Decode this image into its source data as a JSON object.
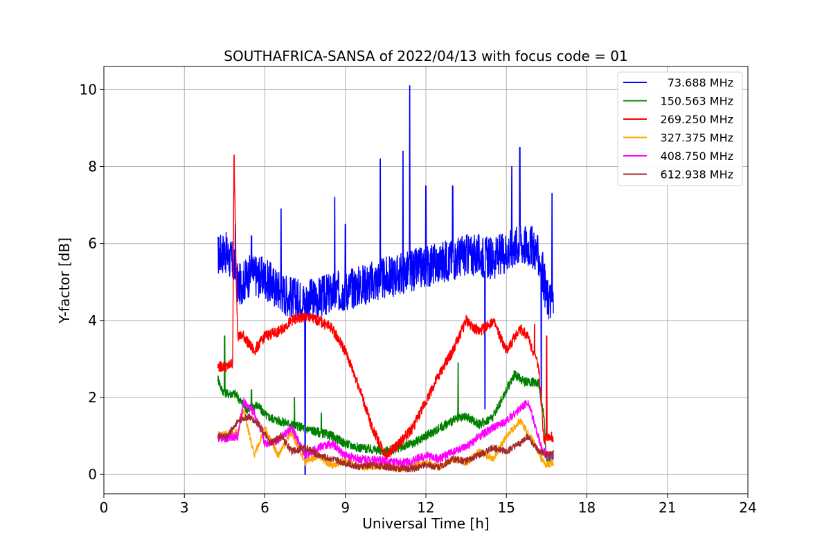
{
  "chart_data": {
    "type": "line",
    "title": "SOUTHAFRICA-SANSA of 2022/04/13 with focus code = 01",
    "xlabel": "Universal Time [h]",
    "ylabel": "Y-factor [dB]",
    "xlim": [
      0,
      24
    ],
    "ylim": [
      -0.5,
      10.6
    ],
    "xticks": [
      0,
      3,
      6,
      9,
      12,
      15,
      18,
      21,
      24
    ],
    "yticks": [
      0,
      2,
      4,
      6,
      8,
      10
    ],
    "grid": true,
    "legend_position": "top-right",
    "series": [
      {
        "name": "73.688 MHz",
        "color": "#0000ff",
        "x": [
          4.25,
          4.5,
          4.8,
          5.0,
          5.5,
          6.0,
          6.5,
          7.0,
          7.5,
          8.0,
          8.5,
          9.0,
          9.5,
          10.0,
          10.5,
          11.0,
          11.5,
          12.0,
          12.5,
          13.0,
          13.5,
          14.0,
          14.5,
          15.0,
          15.5,
          16.0,
          16.3,
          16.5,
          16.75
        ],
        "y": [
          5.7,
          5.8,
          5.5,
          4.9,
          5.2,
          5.1,
          4.8,
          4.6,
          4.5,
          4.6,
          4.7,
          4.8,
          4.9,
          5.0,
          5.1,
          5.2,
          5.3,
          5.4,
          5.5,
          5.6,
          5.7,
          5.7,
          5.6,
          5.8,
          6.0,
          5.9,
          5.5,
          4.6,
          4.5
        ],
        "spikes": [
          [
            4.9,
            6.5
          ],
          [
            5.5,
            6.2
          ],
          [
            6.6,
            6.9
          ],
          [
            7.5,
            0.0
          ],
          [
            8.6,
            7.2
          ],
          [
            9.0,
            6.5
          ],
          [
            10.3,
            8.2
          ],
          [
            11.15,
            8.4
          ],
          [
            11.4,
            10.1
          ],
          [
            12.0,
            7.5
          ],
          [
            13.0,
            7.5
          ],
          [
            14.2,
            1.7
          ],
          [
            15.2,
            8.0
          ],
          [
            15.5,
            8.5
          ],
          [
            16.3,
            1.8
          ],
          [
            16.7,
            7.3
          ]
        ]
      },
      {
        "name": "150.563 MHz",
        "color": "#008000",
        "x": [
          4.25,
          4.4,
          4.6,
          4.9,
          5.3,
          5.7,
          6.1,
          6.5,
          7.0,
          7.5,
          8.0,
          8.5,
          9.0,
          9.5,
          10.0,
          10.5,
          11.0,
          11.5,
          12.0,
          12.5,
          13.0,
          13.5,
          14.0,
          14.5,
          15.0,
          15.3,
          15.7,
          16.2,
          16.4,
          16.5,
          16.75
        ],
        "y": [
          2.5,
          2.2,
          2.1,
          2.1,
          1.7,
          1.8,
          1.5,
          1.4,
          1.3,
          1.2,
          1.1,
          1.0,
          0.8,
          0.7,
          0.65,
          0.6,
          0.7,
          0.8,
          1.0,
          1.2,
          1.4,
          1.5,
          1.3,
          1.5,
          2.2,
          2.6,
          2.4,
          2.4,
          1.5,
          0.3,
          0.5
        ],
        "spikes": [
          [
            4.5,
            3.6
          ],
          [
            5.5,
            2.2
          ],
          [
            7.1,
            2.0
          ],
          [
            8.1,
            1.6
          ],
          [
            13.2,
            2.9
          ]
        ]
      },
      {
        "name": "269.250 MHz",
        "color": "#ff0000",
        "x": [
          4.25,
          4.6,
          4.8,
          4.85,
          4.95,
          5.0,
          5.2,
          5.6,
          6.0,
          6.5,
          7.0,
          7.5,
          8.0,
          8.5,
          9.0,
          9.5,
          10.0,
          10.5,
          11.0,
          11.5,
          12.0,
          12.5,
          13.0,
          13.5,
          14.0,
          14.5,
          15.0,
          15.5,
          15.8,
          16.2,
          16.4,
          16.5,
          16.75
        ],
        "y": [
          2.8,
          2.8,
          2.9,
          8.3,
          4.6,
          3.6,
          3.6,
          3.2,
          3.6,
          3.7,
          4.0,
          4.1,
          4.0,
          3.8,
          3.2,
          2.3,
          1.2,
          0.5,
          0.8,
          1.2,
          1.9,
          2.6,
          3.2,
          4.0,
          3.7,
          4.0,
          3.2,
          3.8,
          3.6,
          2.8,
          0.9,
          1.0,
          0.95
        ],
        "spikes": [
          [
            4.85,
            8.3
          ],
          [
            4.9,
            6.6
          ],
          [
            16.05,
            3.9
          ],
          [
            16.5,
            3.6
          ]
        ]
      },
      {
        "name": "327.375 MHz",
        "color": "#ffa500",
        "x": [
          4.25,
          4.6,
          5.0,
          5.2,
          5.6,
          6.0,
          6.5,
          7.0,
          7.5,
          8.0,
          8.5,
          9.0,
          9.5,
          10.0,
          10.5,
          11.0,
          11.5,
          12.0,
          12.5,
          13.0,
          13.5,
          14.0,
          14.5,
          15.0,
          15.5,
          16.0,
          16.3,
          16.5,
          16.75
        ],
        "y": [
          1.05,
          1.05,
          1.1,
          1.7,
          0.5,
          1.2,
          0.5,
          1.1,
          0.3,
          0.5,
          0.2,
          0.4,
          0.2,
          0.2,
          0.25,
          0.15,
          0.2,
          0.3,
          0.2,
          0.4,
          0.3,
          0.6,
          0.4,
          1.0,
          1.4,
          0.9,
          0.4,
          0.25,
          0.3
        ],
        "spikes": []
      },
      {
        "name": "408.750 MHz",
        "color": "#ff00ff",
        "x": [
          4.25,
          4.6,
          5.0,
          5.2,
          5.6,
          6.0,
          6.5,
          7.0,
          7.5,
          8.0,
          8.5,
          9.0,
          9.5,
          10.0,
          10.5,
          11.0,
          11.5,
          12.0,
          12.5,
          13.0,
          13.5,
          14.0,
          14.5,
          15.0,
          15.5,
          15.8,
          16.1,
          16.3,
          16.5,
          16.75
        ],
        "y": [
          0.95,
          0.95,
          1.0,
          1.9,
          1.6,
          0.8,
          0.9,
          1.2,
          0.5,
          0.7,
          0.8,
          0.5,
          0.4,
          0.4,
          0.35,
          0.3,
          0.35,
          0.5,
          0.4,
          0.6,
          0.7,
          1.0,
          1.2,
          1.4,
          1.7,
          1.9,
          1.2,
          0.7,
          0.5,
          0.5
        ],
        "spikes": []
      },
      {
        "name": "612.938 MHz",
        "color": "#a52a2a",
        "x": [
          4.25,
          4.6,
          5.0,
          5.4,
          5.8,
          6.2,
          6.6,
          7.0,
          7.5,
          8.0,
          8.5,
          9.0,
          9.5,
          10.0,
          10.5,
          11.0,
          11.5,
          12.0,
          12.5,
          13.0,
          13.5,
          14.0,
          14.5,
          15.0,
          15.5,
          15.8,
          16.2,
          16.5,
          16.75
        ],
        "y": [
          1.0,
          1.0,
          1.4,
          1.5,
          1.3,
          0.8,
          1.0,
          0.6,
          0.7,
          0.5,
          0.4,
          0.3,
          0.2,
          0.25,
          0.2,
          0.15,
          0.15,
          0.25,
          0.2,
          0.4,
          0.35,
          0.5,
          0.7,
          0.6,
          0.8,
          1.0,
          0.6,
          0.5,
          0.55
        ],
        "spikes": []
      }
    ]
  }
}
